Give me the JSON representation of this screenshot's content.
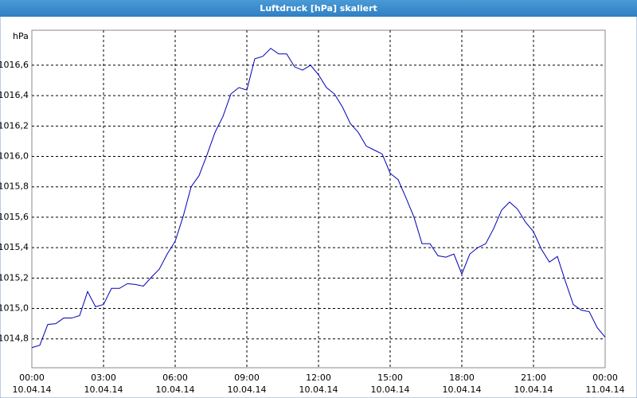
{
  "chart_data": {
    "type": "line",
    "title": "Luftdruck [hPa] skaliert",
    "y_unit": "hPa",
    "x": [
      0,
      20,
      40,
      60,
      80,
      100,
      120,
      140,
      160,
      180,
      200,
      220,
      240,
      260,
      280,
      300,
      320,
      340,
      360,
      380,
      400,
      420,
      440,
      460,
      480,
      500,
      520,
      540,
      560,
      580,
      600,
      620,
      640,
      660,
      680,
      700,
      720,
      740,
      760,
      780,
      800,
      820,
      840,
      860,
      880,
      900,
      920,
      940,
      960,
      980,
      1000,
      1020,
      1040,
      1060,
      1080,
      1100,
      1120,
      1140,
      1160,
      1180,
      1200,
      1220,
      1240,
      1260,
      1280,
      1300,
      1320,
      1340,
      1360,
      1380,
      1400,
      1420,
      1440
    ],
    "series": [
      {
        "color": "#0000b4",
        "values": [
          1014.742,
          1014.758,
          1014.895,
          1014.9,
          1014.937,
          1014.937,
          1014.953,
          1015.111,
          1015.011,
          1015.026,
          1015.132,
          1015.132,
          1015.163,
          1015.158,
          1015.147,
          1015.205,
          1015.258,
          1015.358,
          1015.442,
          1015.605,
          1015.8,
          1015.874,
          1016.011,
          1016.158,
          1016.263,
          1016.411,
          1016.453,
          1016.437,
          1016.642,
          1016.658,
          1016.711,
          1016.674,
          1016.674,
          1016.589,
          1016.568,
          1016.6,
          1016.537,
          1016.453,
          1016.411,
          1016.326,
          1016.216,
          1016.158,
          1016.068,
          1016.042,
          1016.016,
          1015.889,
          1015.847,
          1015.726,
          1015.6,
          1015.426,
          1015.426,
          1015.347,
          1015.337,
          1015.358,
          1015.226,
          1015.358,
          1015.4,
          1015.426,
          1015.526,
          1015.647,
          1015.7,
          1015.653,
          1015.568,
          1015.505,
          1015.389,
          1015.305,
          1015.342,
          1015.179,
          1015.026,
          1014.989,
          1014.979,
          1014.874,
          1014.811
        ]
      }
    ],
    "xlim": [
      0,
      1440
    ],
    "xticks": [
      {
        "value": 0,
        "label": "00:00"
      },
      {
        "value": 180,
        "label": "03:00"
      },
      {
        "value": 360,
        "label": "06:00"
      },
      {
        "value": 540,
        "label": "09:00"
      },
      {
        "value": 720,
        "label": "12:00"
      },
      {
        "value": 900,
        "label": "15:00"
      },
      {
        "value": 1080,
        "label": "18:00"
      },
      {
        "value": 1260,
        "label": "21:00"
      },
      {
        "value": 1440,
        "label": "00:00"
      }
    ],
    "xtick_dates": [
      "10.04.14",
      "10.04.14",
      "10.04.14",
      "10.04.14",
      "10.04.14",
      "10.04.14",
      "10.04.14",
      "10.04.14",
      "11.04.14"
    ],
    "ylim": [
      1014.61,
      1016.83
    ],
    "yticks": [
      {
        "value": 1014.8,
        "label": "1014,8"
      },
      {
        "value": 1015.0,
        "label": "1015,0"
      },
      {
        "value": 1015.2,
        "label": "1015,2"
      },
      {
        "value": 1015.4,
        "label": "1015,4"
      },
      {
        "value": 1015.6,
        "label": "1015,6"
      },
      {
        "value": 1015.8,
        "label": "1015,8"
      },
      {
        "value": 1016.0,
        "label": "1016,0"
      },
      {
        "value": 1016.2,
        "label": "1016,2"
      },
      {
        "value": 1016.4,
        "label": "1016,4"
      },
      {
        "value": 1016.6,
        "label": "1016,6"
      }
    ],
    "grid": true
  }
}
